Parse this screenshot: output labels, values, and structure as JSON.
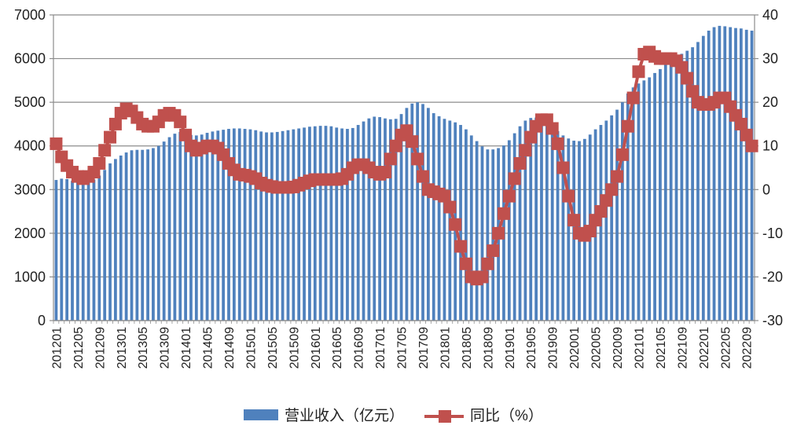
{
  "chart_data": {
    "type": "bar+line",
    "categories": [
      "201201",
      "201202",
      "201203",
      "201204",
      "201205",
      "201206",
      "201207",
      "201208",
      "201209",
      "201210",
      "201211",
      "201212",
      "201301",
      "201302",
      "201303",
      "201304",
      "201305",
      "201306",
      "201307",
      "201308",
      "201309",
      "201310",
      "201311",
      "201312",
      "201401",
      "201402",
      "201403",
      "201404",
      "201405",
      "201406",
      "201407",
      "201408",
      "201409",
      "201410",
      "201411",
      "201412",
      "201501",
      "201502",
      "201503",
      "201504",
      "201505",
      "201506",
      "201507",
      "201508",
      "201509",
      "201510",
      "201511",
      "201512",
      "201601",
      "201602",
      "201603",
      "201604",
      "201605",
      "201606",
      "201607",
      "201608",
      "201609",
      "201610",
      "201611",
      "201612",
      "201701",
      "201702",
      "201703",
      "201704",
      "201705",
      "201706",
      "201707",
      "201708",
      "201709",
      "201710",
      "201711",
      "201712",
      "201801",
      "201802",
      "201803",
      "201804",
      "201805",
      "201806",
      "201807",
      "201808",
      "201809",
      "201810",
      "201811",
      "201812",
      "201901",
      "201902",
      "201903",
      "201904",
      "201905",
      "201906",
      "201907",
      "201908",
      "201909",
      "201910",
      "201911",
      "201912",
      "202001",
      "202002",
      "202003",
      "202004",
      "202005",
      "202006",
      "202007",
      "202008",
      "202009",
      "202010",
      "202011",
      "202012",
      "202101",
      "202102",
      "202103",
      "202104",
      "202105",
      "202106",
      "202107",
      "202108",
      "202109",
      "202110",
      "202111",
      "202112",
      "202201",
      "202202",
      "202203",
      "202204",
      "202205",
      "202206",
      "202207",
      "202208",
      "202209",
      "202210"
    ],
    "x_tick_labels": [
      "201201",
      "201205",
      "201209",
      "201301",
      "201305",
      "201309",
      "201401",
      "201405",
      "201409",
      "201501",
      "201505",
      "201509",
      "201601",
      "201605",
      "201609",
      "201701",
      "201705",
      "201709",
      "201801",
      "201805",
      "201809",
      "201901",
      "201905",
      "201909",
      "202001",
      "202005",
      "202009",
      "202101",
      "202105",
      "202109",
      "202201",
      "202205",
      "202209"
    ],
    "series": [
      {
        "name": "营业收入（亿元）",
        "type": "bar",
        "axis": "left",
        "color": "#4f81bd",
        "values": [
          3220,
          3250,
          3240,
          3200,
          3180,
          3170,
          3180,
          3230,
          3320,
          3450,
          3600,
          3700,
          3780,
          3850,
          3900,
          3910,
          3910,
          3920,
          3950,
          4000,
          4100,
          4200,
          4280,
          4320,
          4280,
          4250,
          4240,
          4260,
          4300,
          4330,
          4350,
          4370,
          4390,
          4400,
          4400,
          4390,
          4380,
          4360,
          4330,
          4310,
          4310,
          4320,
          4340,
          4360,
          4380,
          4400,
          4420,
          4440,
          4450,
          4460,
          4460,
          4450,
          4420,
          4400,
          4390,
          4410,
          4480,
          4560,
          4630,
          4670,
          4660,
          4630,
          4610,
          4620,
          4730,
          4870,
          4970,
          5000,
          4960,
          4870,
          4750,
          4680,
          4620,
          4580,
          4540,
          4480,
          4380,
          4240,
          4110,
          3990,
          3920,
          3920,
          3950,
          4010,
          4130,
          4290,
          4450,
          4580,
          4640,
          4650,
          4640,
          4580,
          4470,
          4340,
          4240,
          4170,
          4120,
          4110,
          4160,
          4260,
          4380,
          4480,
          4580,
          4700,
          4830,
          5000,
          5200,
          5340,
          5430,
          5500,
          5570,
          5670,
          5760,
          5860,
          5950,
          6040,
          6110,
          6180,
          6260,
          6380,
          6520,
          6640,
          6720,
          6750,
          6740,
          6720,
          6700,
          6690,
          6660,
          6640
        ]
      },
      {
        "name": "同比（%）",
        "type": "line",
        "axis": "right",
        "color": "#c0504d",
        "values": [
          10.5,
          7.5,
          5.5,
          4,
          3,
          2.5,
          3,
          4,
          6,
          9,
          12,
          15,
          17.5,
          18.5,
          18,
          16.5,
          15,
          14.5,
          14.5,
          15.5,
          17,
          17.5,
          17,
          15.5,
          12.5,
          10,
          9,
          9.5,
          10,
          10,
          9.5,
          8,
          6,
          4.5,
          3.5,
          3.3,
          3,
          2.5,
          1.5,
          1,
          0.7,
          0.5,
          0.5,
          0.5,
          0.6,
          1,
          1.5,
          2,
          2.3,
          2.3,
          2.3,
          2.3,
          2.3,
          2.5,
          3.5,
          5,
          5.7,
          5.7,
          5,
          4,
          3.5,
          4,
          7,
          10,
          12.5,
          13.5,
          11,
          7,
          3,
          0,
          -0.5,
          -1,
          -1.5,
          -4,
          -8,
          -13,
          -17,
          -20,
          -20.5,
          -20,
          -17,
          -14,
          -10,
          -5.5,
          -1.5,
          2.5,
          6,
          9,
          12,
          14.5,
          16,
          16,
          14,
          10.5,
          5,
          -1.5,
          -7,
          -10,
          -10.5,
          -9.5,
          -7,
          -5,
          -2.5,
          0,
          3,
          8,
          14.5,
          21,
          27,
          31,
          31.5,
          30.5,
          30,
          30,
          30,
          29.5,
          28,
          25.5,
          22.5,
          20,
          19.5,
          19.5,
          20,
          21,
          21,
          19,
          17,
          15,
          12.5,
          10
        ]
      }
    ],
    "y_left": {
      "min": 0,
      "max": 7000,
      "ticks": [
        0,
        1000,
        2000,
        3000,
        4000,
        5000,
        6000,
        7000
      ]
    },
    "y_right": {
      "min": -30,
      "max": 40,
      "ticks": [
        -30,
        -20,
        -10,
        0,
        10,
        20,
        30,
        40
      ]
    },
    "grid": true,
    "legend_position": "bottom"
  }
}
